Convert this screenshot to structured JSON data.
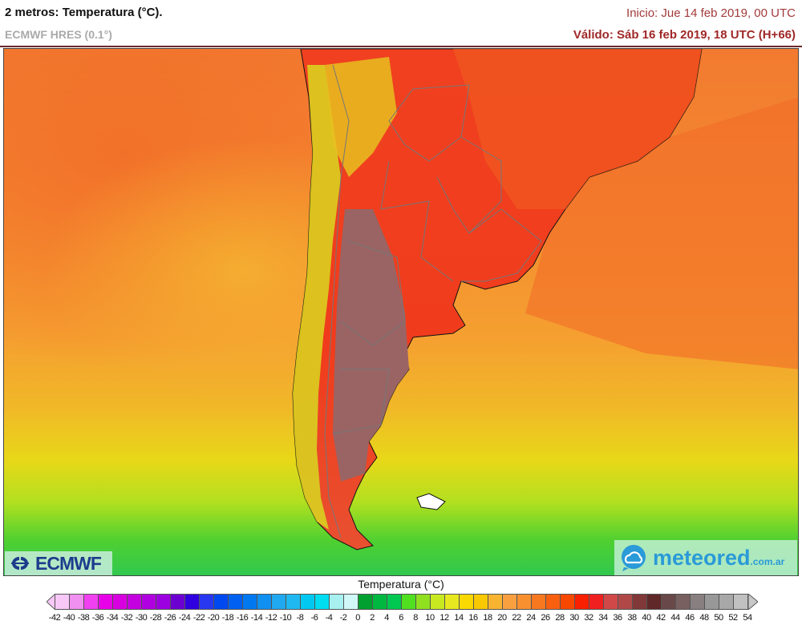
{
  "header": {
    "title": "2 metros: Temperatura (°C).",
    "model": "ECMWF HRES (0.1°)",
    "init": "Inicio: Jue 14 feb 2019, 00 UTC",
    "valid": "Válido: Sáb 16 feb 2019, 18 UTC (H+66)"
  },
  "logos": {
    "ecmwf": "ECMWF",
    "meteored": "meteored",
    "meteored_domain": ".com.ar"
  },
  "legend": {
    "title": "Temperatura (°C)",
    "labels": [
      "-42",
      "-40",
      "-38",
      "-36",
      "-34",
      "-32",
      "-30",
      "-28",
      "-26",
      "-24",
      "-22",
      "-20",
      "-18",
      "-16",
      "-14",
      "-12",
      "-10",
      "-8",
      "-6",
      "-4",
      "-2",
      "0",
      "2",
      "4",
      "6",
      "8",
      "10",
      "12",
      "14",
      "16",
      "18",
      "20",
      "22",
      "24",
      "26",
      "28",
      "30",
      "32",
      "34",
      "36",
      "38",
      "40",
      "42",
      "44",
      "46",
      "48",
      "50",
      "52",
      "54"
    ],
    "colors": [
      "#f8c8f8",
      "#f090f0",
      "#f040f0",
      "#e800e8",
      "#d800e0",
      "#c400e0",
      "#b000e0",
      "#9c00e0",
      "#8800d8",
      "#6c00d0",
      "#3000e0",
      "#2838f0",
      "#0048f0",
      "#0060f0",
      "#0078f0",
      "#1090f0",
      "#20a8f0",
      "#20b8f0",
      "#00c8f0",
      "#00dcf0",
      "#a8f0f0",
      "#d0f8f8",
      "#00a030",
      "#00b840",
      "#00c850",
      "#30d840",
      "#50e020",
      "#90e020",
      "#c8e820",
      "#e8e820",
      "#f8d800",
      "#f8c800",
      "#f8b430",
      "#f8a040",
      "#f89030",
      "#f87820",
      "#f86010",
      "#f84800",
      "#f82000",
      "#f02020",
      "#d04848",
      "#b04848",
      "#984040",
      "#803838",
      "#602828",
      "#684848",
      "#786060",
      "#888080",
      "#989898",
      "#a8a8a8",
      "#c0c0c0"
    ],
    "under_color": "#f8c8f8",
    "over_color": "#c8c8c8"
  },
  "map": {
    "ocean_north": "#f27a30",
    "ocean_mid": "#f5a030",
    "ocean_south_yellow": "#e8d818",
    "ocean_south_green": "#40d030",
    "land_hot": "#f03c1c",
    "land_hottest": "#9a6464"
  }
}
